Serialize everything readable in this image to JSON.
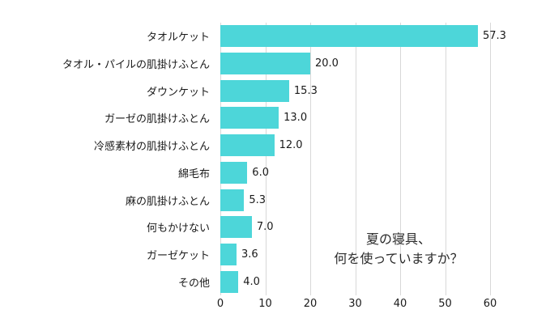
{
  "chart_data": {
    "type": "bar",
    "orientation": "horizontal",
    "title": "",
    "categories": [
      "タオルケット",
      "タオル・パイルの肌掛けふとん",
      "ダウンケット",
      "ガーゼの肌掛けふとん",
      "冷感素材の肌掛けふとん",
      "綿毛布",
      "麻の肌掛けふとん",
      "何もかけない",
      "ガーゼケット",
      "その他"
    ],
    "values": [
      57.3,
      20.0,
      15.3,
      13.0,
      12.0,
      6.0,
      5.3,
      7.0,
      3.6,
      4.0
    ],
    "value_labels": [
      "57.3",
      "20.0",
      "15.3",
      "13.0",
      "12.0",
      "6.0",
      "5.3",
      "7.0",
      "3.6",
      "4.0"
    ],
    "xlabel": "",
    "ylabel": "",
    "xlim": [
      0,
      60
    ],
    "xticks": [
      0,
      10,
      20,
      30,
      40,
      50,
      60
    ],
    "grid": "vertical",
    "legend": "none",
    "bar_color": "#4dd6d9",
    "gridline_color": "#d8d8d8",
    "annotation_lines": [
      "夏の寝具、",
      "何を使っていますか？"
    ]
  }
}
